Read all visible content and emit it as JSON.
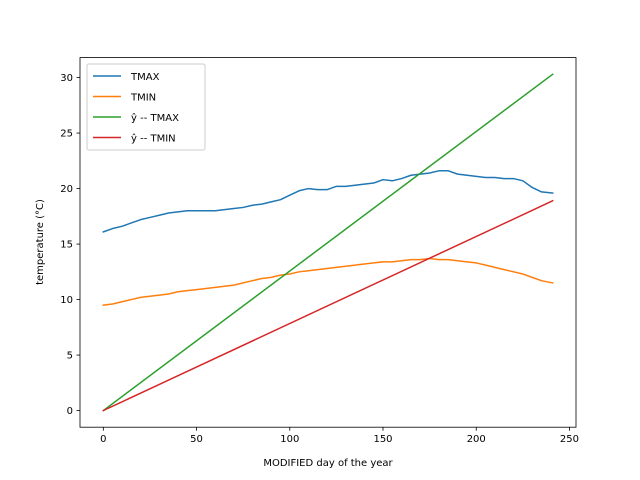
{
  "chart_data": {
    "type": "line",
    "title": "",
    "xlabel": "MODIFIED day of the year",
    "ylabel": "temperature (°C)",
    "xlim": [
      -12.5,
      253.5
    ],
    "ylim": [
      -1.5,
      31.8
    ],
    "xticks": [
      0,
      50,
      100,
      150,
      200,
      250
    ],
    "yticks": [
      0,
      5,
      10,
      15,
      20,
      25,
      30
    ],
    "grid": false,
    "legend_position": "top-left",
    "series": [
      {
        "name": "TMAX",
        "color": "#1f77b4",
        "x": [
          0,
          5,
          10,
          15,
          20,
          25,
          30,
          35,
          40,
          45,
          50,
          55,
          60,
          65,
          70,
          75,
          80,
          85,
          90,
          95,
          100,
          105,
          110,
          115,
          120,
          125,
          130,
          135,
          140,
          145,
          150,
          155,
          160,
          165,
          170,
          175,
          180,
          185,
          190,
          195,
          200,
          205,
          210,
          215,
          220,
          225,
          230,
          235,
          241
        ],
        "y": [
          16.1,
          16.4,
          16.6,
          16.9,
          17.2,
          17.4,
          17.6,
          17.8,
          17.9,
          18.0,
          18.0,
          18.0,
          18.0,
          18.1,
          18.2,
          18.3,
          18.5,
          18.6,
          18.8,
          19.0,
          19.4,
          19.8,
          20.0,
          19.9,
          19.9,
          20.2,
          20.2,
          20.3,
          20.4,
          20.5,
          20.8,
          20.7,
          20.9,
          21.2,
          21.3,
          21.4,
          21.6,
          21.6,
          21.3,
          21.2,
          21.1,
          21.0,
          21.0,
          20.9,
          20.9,
          20.7,
          20.1,
          19.7,
          19.6
        ]
      },
      {
        "name": "TMIN",
        "color": "#ff7f0e",
        "x": [
          0,
          5,
          10,
          15,
          20,
          25,
          30,
          35,
          40,
          45,
          50,
          55,
          60,
          65,
          70,
          75,
          80,
          85,
          90,
          95,
          100,
          105,
          110,
          115,
          120,
          125,
          130,
          135,
          140,
          145,
          150,
          155,
          160,
          165,
          170,
          175,
          180,
          185,
          190,
          195,
          200,
          205,
          210,
          215,
          220,
          225,
          230,
          235,
          241
        ],
        "y": [
          9.5,
          9.6,
          9.8,
          10.0,
          10.2,
          10.3,
          10.4,
          10.5,
          10.7,
          10.8,
          10.9,
          11.0,
          11.1,
          11.2,
          11.3,
          11.5,
          11.7,
          11.9,
          12.0,
          12.2,
          12.3,
          12.5,
          12.6,
          12.7,
          12.8,
          12.9,
          13.0,
          13.1,
          13.2,
          13.3,
          13.4,
          13.4,
          13.5,
          13.6,
          13.6,
          13.7,
          13.6,
          13.6,
          13.5,
          13.4,
          13.3,
          13.1,
          12.9,
          12.7,
          12.5,
          12.3,
          12.0,
          11.7,
          11.5
        ]
      },
      {
        "name": "ŷ -- TMAX",
        "color": "#2ca02c",
        "x": [
          0,
          241
        ],
        "y": [
          0.0,
          30.3
        ]
      },
      {
        "name": "ŷ -- TMIN",
        "color": "#d62728",
        "x": [
          0,
          241
        ],
        "y": [
          0.0,
          18.9
        ]
      }
    ]
  }
}
